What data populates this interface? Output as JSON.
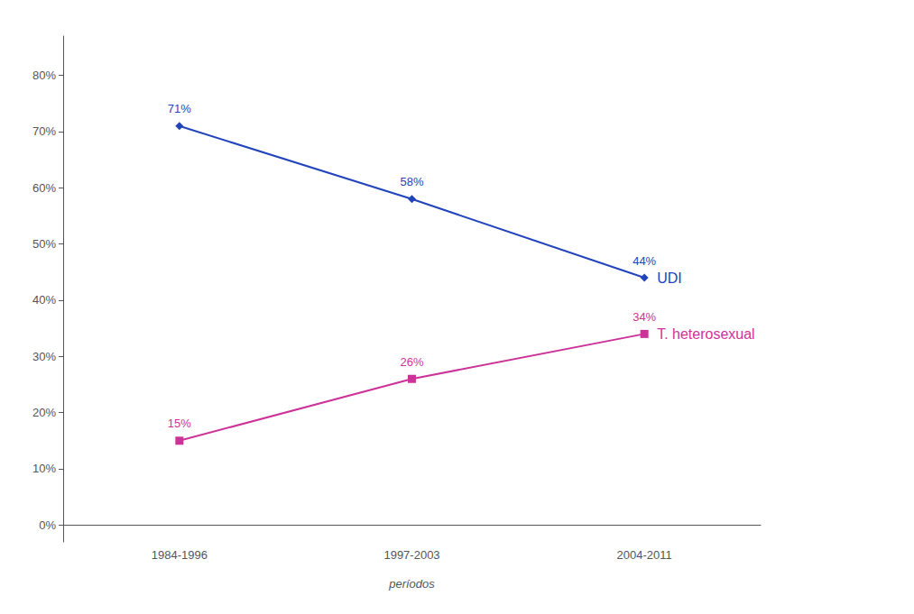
{
  "chart_data": {
    "type": "line",
    "categories": [
      "1984-1996",
      "1997-2003",
      "2004-2011"
    ],
    "series": [
      {
        "name": "UDI",
        "color": "#2244bb",
        "marker": "diamond",
        "values": [
          71,
          58,
          44
        ],
        "value_labels": [
          "71%",
          "58%",
          "44%"
        ]
      },
      {
        "name": "T. heterosexual",
        "color": "#cc3399",
        "marker": "square",
        "values": [
          15,
          26,
          34
        ],
        "value_labels": [
          "15%",
          "26%",
          "34%"
        ]
      }
    ],
    "xlabel": "períodos",
    "ylim": [
      -3,
      87
    ],
    "yticks": [
      {
        "value": 0,
        "label": "0%"
      },
      {
        "value": 10,
        "label": "10%"
      },
      {
        "value": 20,
        "label": "20%"
      },
      {
        "value": 30,
        "label": "30%"
      },
      {
        "value": 40,
        "label": "40%"
      },
      {
        "value": 50,
        "label": "50%"
      },
      {
        "value": 60,
        "label": "60%"
      },
      {
        "value": 70,
        "label": "70%"
      },
      {
        "value": 80,
        "label": "80%"
      }
    ],
    "data_labels": true,
    "grid": false
  }
}
